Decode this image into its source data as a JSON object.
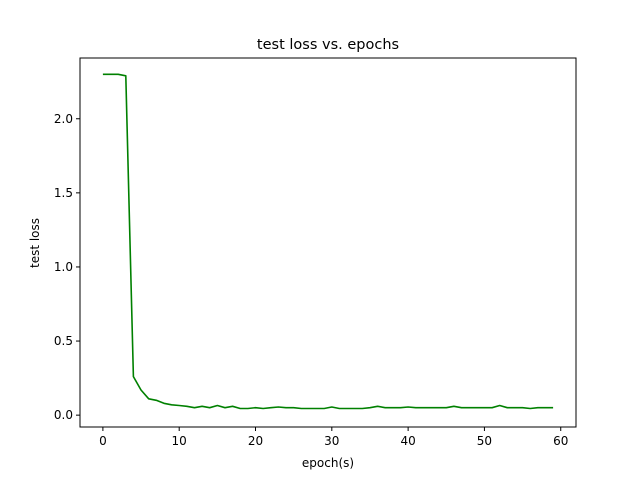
{
  "chart_data": {
    "type": "line",
    "title": "test loss vs. epochs",
    "xlabel": "epoch(s)",
    "ylabel": "test loss",
    "xlim": [
      -3,
      62
    ],
    "ylim": [
      -0.08,
      2.41
    ],
    "xticks": [
      0,
      10,
      20,
      30,
      40,
      50,
      60
    ],
    "yticks": [
      0.0,
      0.5,
      1.0,
      1.5,
      2.0
    ],
    "xtick_labels": [
      "0",
      "10",
      "20",
      "30",
      "40",
      "50",
      "60"
    ],
    "ytick_labels": [
      "0.0",
      "0.5",
      "1.0",
      "1.5",
      "2.0"
    ],
    "grid": false,
    "legend": "none",
    "series": [
      {
        "color": "#008000",
        "x": [
          0,
          1,
          2,
          3,
          4,
          5,
          6,
          7,
          8,
          9,
          10,
          11,
          12,
          13,
          14,
          15,
          16,
          17,
          18,
          19,
          20,
          21,
          22,
          23,
          24,
          25,
          26,
          27,
          28,
          29,
          30,
          31,
          32,
          33,
          34,
          35,
          36,
          37,
          38,
          39,
          40,
          41,
          42,
          43,
          44,
          45,
          46,
          47,
          48,
          49,
          50,
          51,
          52,
          53,
          54,
          55,
          56,
          57,
          58,
          59
        ],
        "y": [
          2.3,
          2.3,
          2.3,
          2.29,
          0.26,
          0.17,
          0.11,
          0.1,
          0.08,
          0.07,
          0.065,
          0.06,
          0.05,
          0.06,
          0.05,
          0.065,
          0.05,
          0.06,
          0.045,
          0.045,
          0.05,
          0.045,
          0.05,
          0.055,
          0.05,
          0.05,
          0.045,
          0.045,
          0.045,
          0.045,
          0.055,
          0.045,
          0.045,
          0.045,
          0.045,
          0.05,
          0.06,
          0.05,
          0.05,
          0.05,
          0.055,
          0.05,
          0.05,
          0.05,
          0.05,
          0.05,
          0.06,
          0.05,
          0.05,
          0.05,
          0.05,
          0.05,
          0.065,
          0.05,
          0.05,
          0.05,
          0.045,
          0.05,
          0.05,
          0.05
        ]
      }
    ]
  }
}
